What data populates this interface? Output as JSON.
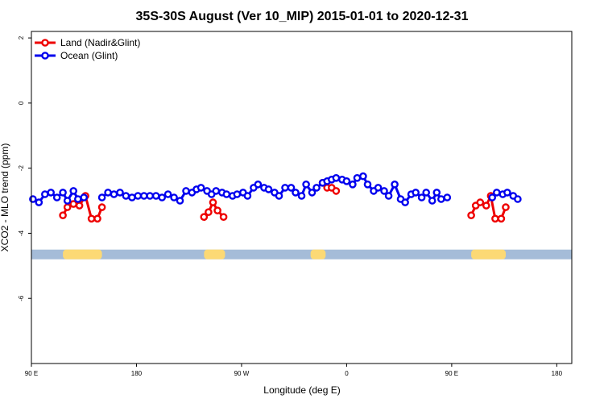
{
  "chart_data": {
    "type": "line",
    "title": "35S-30S August (Ver 10_MIP)   2015-01-01 to 2020-12-31",
    "xlabel": "Longitude (deg E)",
    "ylabel": "XCO2 - MLO trend (ppm)",
    "xlim": [
      90,
      450
    ],
    "ylim": [
      -8,
      2.2
    ],
    "x_ticks": [
      {
        "value": 90,
        "label": "90 E"
      },
      {
        "value": 160,
        "label": "180"
      },
      {
        "value": 230,
        "label": "90 W"
      },
      {
        "value": 300,
        "label": "0"
      },
      {
        "value": 370,
        "label": "90 E"
      },
      {
        "value": 440,
        "label": "180"
      }
    ],
    "y_ticks": [
      {
        "value": 2,
        "label": "2"
      },
      {
        "value": 0,
        "label": "0"
      },
      {
        "value": -2,
        "label": "-2"
      },
      {
        "value": -4,
        "label": "-4"
      },
      {
        "value": -6,
        "label": "-6"
      }
    ],
    "legend_position": "top-left",
    "series": [
      {
        "name": "Land (Nadir&Glint)",
        "color": "#ee0000",
        "segments": [
          [
            [
              111,
              -3.45
            ],
            [
              114,
              -3.2
            ],
            [
              118,
              -3.1
            ],
            [
              122,
              -3.15
            ],
            [
              126,
              -2.85
            ],
            [
              130,
              -3.55
            ],
            [
              134,
              -3.55
            ],
            [
              137,
              -3.2
            ]
          ],
          [
            [
              205,
              -3.5
            ],
            [
              208,
              -3.35
            ],
            [
              211,
              -3.05
            ],
            [
              214,
              -3.3
            ],
            [
              218,
              -3.5
            ]
          ],
          [
            [
              284,
              -2.45
            ],
            [
              287,
              -2.6
            ],
            [
              290,
              -2.6
            ],
            [
              293,
              -2.7
            ]
          ],
          [
            [
              383,
              -3.45
            ],
            [
              386,
              -3.15
            ],
            [
              389,
              -3.05
            ],
            [
              393,
              -3.15
            ],
            [
              396,
              -2.85
            ],
            [
              399,
              -3.55
            ],
            [
              403,
              -3.55
            ],
            [
              406,
              -3.2
            ]
          ]
        ]
      },
      {
        "name": "Ocean (Glint)",
        "color": "#0000ee",
        "segments": [
          [
            [
              91,
              -2.95
            ],
            [
              95,
              -3.05
            ],
            [
              99,
              -2.8
            ],
            [
              103,
              -2.75
            ],
            [
              107,
              -2.9
            ],
            [
              111,
              -2.75
            ],
            [
              114,
              -3.0
            ],
            [
              118,
              -2.7
            ],
            [
              121,
              -2.95
            ],
            [
              125,
              -2.9
            ]
          ],
          [
            [
              137,
              -2.9
            ],
            [
              141,
              -2.75
            ],
            [
              145,
              -2.8
            ],
            [
              149,
              -2.75
            ],
            [
              153,
              -2.85
            ],
            [
              157,
              -2.9
            ],
            [
              161,
              -2.85
            ],
            [
              165,
              -2.85
            ],
            [
              169,
              -2.85
            ],
            [
              173,
              -2.85
            ],
            [
              177,
              -2.9
            ],
            [
              181,
              -2.8
            ],
            [
              185,
              -2.9
            ],
            [
              189,
              -3.0
            ],
            [
              193,
              -2.7
            ],
            [
              197,
              -2.75
            ]
          ],
          [
            [
              200,
              -2.65
            ],
            [
              203,
              -2.6
            ]
          ],
          [
            [
              207,
              -2.7
            ],
            [
              210,
              -2.8
            ],
            [
              213,
              -2.7
            ],
            [
              217,
              -2.75
            ],
            [
              220,
              -2.8
            ],
            [
              224,
              -2.85
            ],
            [
              227,
              -2.8
            ],
            [
              231,
              -2.75
            ],
            [
              234,
              -2.85
            ],
            [
              238,
              -2.6
            ],
            [
              241,
              -2.5
            ],
            [
              245,
              -2.6
            ],
            [
              248,
              -2.65
            ],
            [
              252,
              -2.75
            ],
            [
              255,
              -2.85
            ],
            [
              259,
              -2.6
            ],
            [
              263,
              -2.6
            ],
            [
              266,
              -2.75
            ],
            [
              270,
              -2.85
            ],
            [
              273,
              -2.5
            ],
            [
              277,
              -2.75
            ],
            [
              280,
              -2.6
            ],
            [
              284,
              -2.45
            ],
            [
              287,
              -2.4
            ],
            [
              290,
              -2.35
            ],
            [
              293,
              -2.3
            ],
            [
              297,
              -2.35
            ],
            [
              300,
              -2.4
            ],
            [
              304,
              -2.5
            ],
            [
              307,
              -2.3
            ],
            [
              311,
              -2.25
            ],
            [
              314,
              -2.5
            ],
            [
              318,
              -2.7
            ],
            [
              321,
              -2.6
            ],
            [
              325,
              -2.7
            ],
            [
              328,
              -2.85
            ],
            [
              332,
              -2.5
            ],
            [
              336,
              -2.95
            ],
            [
              339,
              -3.05
            ],
            [
              343,
              -2.8
            ],
            [
              346,
              -2.75
            ],
            [
              350,
              -2.9
            ],
            [
              353,
              -2.75
            ],
            [
              357,
              -3.0
            ],
            [
              360,
              -2.75
            ],
            [
              363,
              -2.95
            ],
            [
              367,
              -2.9
            ]
          ],
          [
            [
              397,
              -2.9
            ],
            [
              400,
              -2.75
            ],
            [
              404,
              -2.8
            ],
            [
              407,
              -2.75
            ],
            [
              411,
              -2.85
            ],
            [
              414,
              -2.95
            ]
          ]
        ]
      }
    ],
    "land_ocean_strip": {
      "y_center": -4.65,
      "ocean_color": "#a5bcd8",
      "land_color": "#fcd975",
      "land_ranges": [
        [
          111,
          137
        ],
        [
          205,
          219
        ],
        [
          276,
          286
        ],
        [
          383,
          406
        ]
      ]
    }
  }
}
